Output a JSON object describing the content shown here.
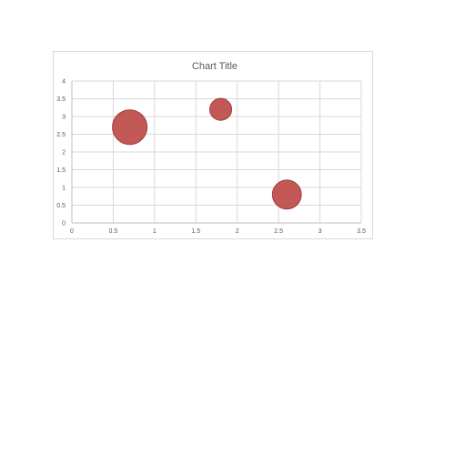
{
  "chart_data": {
    "type": "scatter",
    "subtype": "bubble",
    "title": "Chart Title",
    "xlabel": "",
    "ylabel": "",
    "xlim": [
      0,
      3.5
    ],
    "ylim": [
      0,
      4
    ],
    "x_ticks": [
      "0",
      "0.5",
      "1",
      "1.5",
      "2",
      "2.5",
      "3",
      "3.5"
    ],
    "y_ticks": [
      "0",
      "0.5",
      "1",
      "1.5",
      "2",
      "2.5",
      "3",
      "3.5",
      "4"
    ],
    "grid": true,
    "legend": "none",
    "series": [
      {
        "color": "#c0504d",
        "points": [
          {
            "x": 0.7,
            "y": 2.7,
            "size": 10
          },
          {
            "x": 1.8,
            "y": 3.2,
            "size": 4
          },
          {
            "x": 2.6,
            "y": 0.8,
            "size": 7
          }
        ]
      }
    ]
  }
}
